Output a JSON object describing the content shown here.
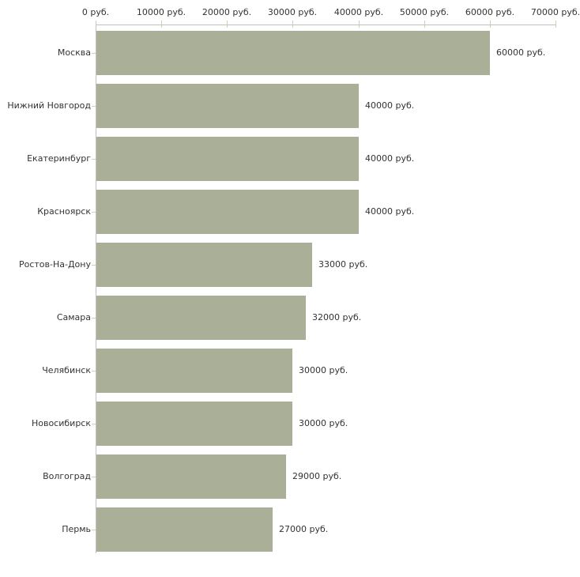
{
  "chart_data": {
    "type": "bar",
    "orientation": "horizontal",
    "categories": [
      "Москва",
      "Нижний Новгород",
      "Екатеринбург",
      "Красноярск",
      "Ростов-На-Дону",
      "Самара",
      "Челябинск",
      "Новосибирск",
      "Волгоград",
      "Пермь"
    ],
    "values": [
      60000,
      40000,
      40000,
      40000,
      33000,
      32000,
      30000,
      30000,
      29000,
      27000
    ],
    "value_labels": [
      "60000 руб.",
      "40000 руб.",
      "40000 руб.",
      "40000 руб.",
      "33000 руб.",
      "32000 руб.",
      "30000 руб.",
      "30000 руб.",
      "29000 руб.",
      "27000 руб."
    ],
    "x_axis": {
      "ticks": [
        0,
        10000,
        20000,
        30000,
        40000,
        50000,
        60000,
        70000
      ],
      "tick_labels": [
        "0 руб.",
        "10000 руб.",
        "20000 руб.",
        "30000 руб.",
        "40000 руб.",
        "50000 руб.",
        "60000 руб.",
        "70000 руб."
      ],
      "min": 0,
      "max": 70000,
      "position": "top"
    },
    "ylabel": "",
    "xlabel": "",
    "legend": "none",
    "grid": "off",
    "unit": "руб.",
    "colors": {
      "bar": "#aab097",
      "axis_line": "#c1c1c1",
      "tick_mark": "#cfd1a6",
      "text": "#333333"
    }
  }
}
